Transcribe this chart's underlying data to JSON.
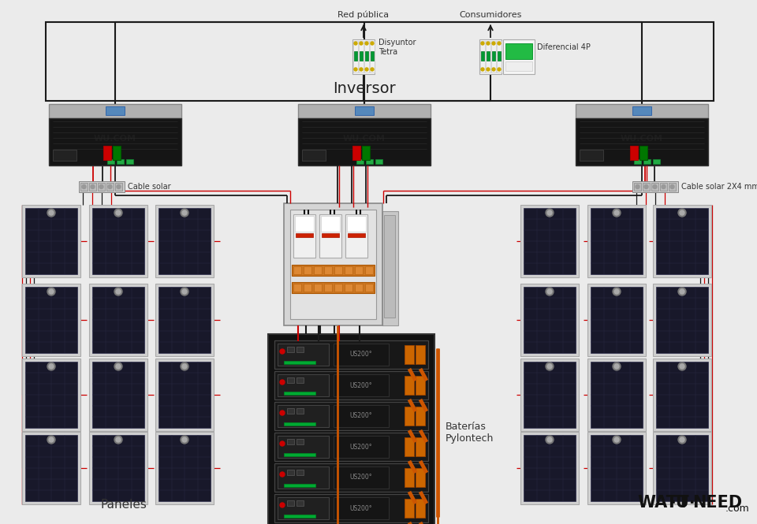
{
  "bg_color": "#ebebeb",
  "labels": {
    "red_publica": "Red pública",
    "consumidores": "Consumidores",
    "disyuntor": "Disyuntor\nTetra",
    "diferencial": "Diferencial 4P",
    "inversor": "Inversor",
    "cable_solar_left": "Cable solar",
    "cable_solar_right": "Cable solar 2X4 mm²",
    "baterias": "Baterías\nPylontech",
    "paneles": "Paneles"
  },
  "wire_black": "#1a1a1a",
  "wire_red": "#cc0000",
  "wire_orange": "#cc5500",
  "text_color": "#333333"
}
